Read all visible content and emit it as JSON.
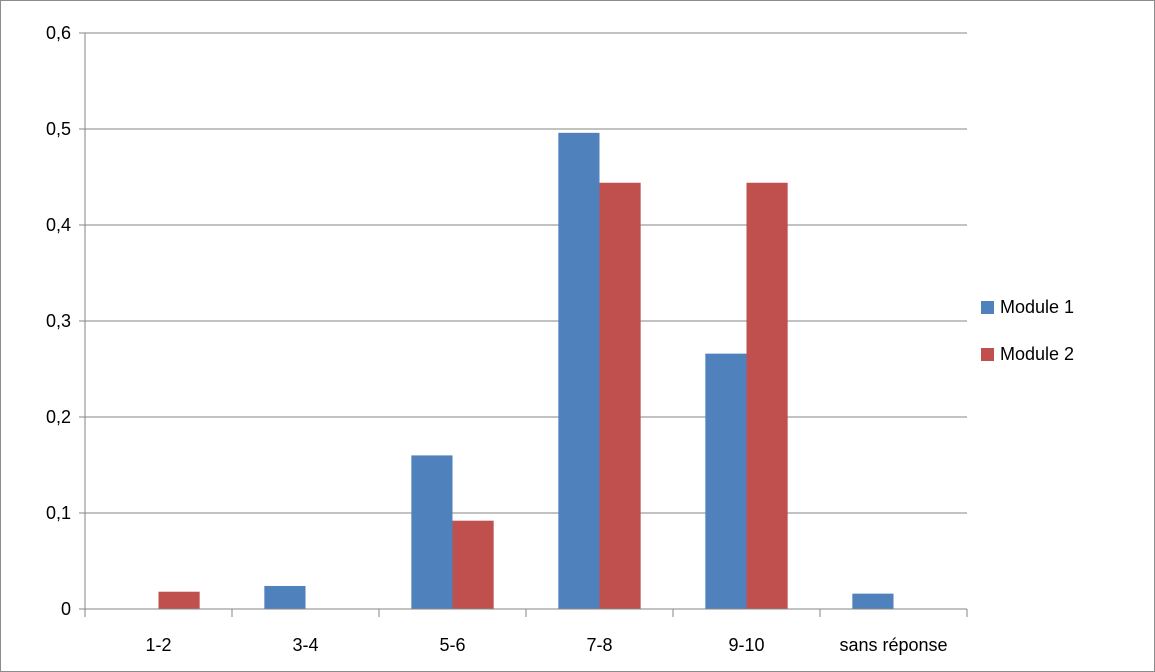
{
  "chart_data": {
    "type": "bar",
    "title": "",
    "xlabel": "",
    "ylabel": "",
    "categories": [
      "1-2",
      "3-4",
      "5-6",
      "7-8",
      "9-10",
      "sans réponse"
    ],
    "series": [
      {
        "name": "Module 1",
        "color": "#4F81BD",
        "values": [
          0,
          0.024,
          0.16,
          0.496,
          0.266,
          0.016
        ]
      },
      {
        "name": "Module 2",
        "color": "#C0504D",
        "values": [
          0.018,
          0,
          0.092,
          0.444,
          0.444,
          0
        ]
      }
    ],
    "ylim": [
      0,
      0.6
    ],
    "yticks": [
      0,
      0.1,
      0.2,
      0.3,
      0.4,
      0.5,
      0.6
    ],
    "ytick_labels": [
      "0",
      "0,1",
      "0,2",
      "0,3",
      "0,4",
      "0,5",
      "0,6"
    ],
    "grid": true,
    "legend_position": "right"
  }
}
